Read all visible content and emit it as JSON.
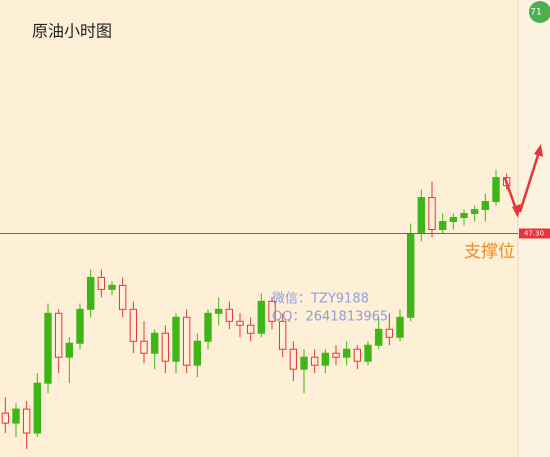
{
  "chart_data": {
    "type": "candlestick",
    "title": "原油小时图",
    "badge": "71",
    "price_line": {
      "value": 47.3,
      "label": "47.30"
    },
    "annotations": [
      "支撑位",
      "微信：TZY9188",
      "QQ：2641813965"
    ],
    "bull_color": "#3fb618",
    "bear_color": "#e8343c",
    "ylim": [
      46.18,
      48.47
    ],
    "open": [
      46.4,
      46.35,
      46.42,
      46.3,
      46.55,
      46.9,
      46.68,
      46.75,
      46.92,
      47.08,
      47.02,
      47.04,
      46.92,
      46.76,
      46.7,
      46.8,
      46.66,
      46.88,
      46.64,
      46.76,
      46.9,
      46.92,
      46.86,
      46.84,
      46.8,
      46.96,
      46.86,
      46.72,
      46.62,
      46.68,
      46.64,
      46.7,
      46.68,
      46.72,
      46.66,
      46.74,
      46.82,
      46.78,
      46.88,
      47.3,
      47.48,
      47.32,
      47.36,
      47.38,
      47.4,
      47.42,
      47.46,
      47.58
    ],
    "high": [
      46.48,
      46.45,
      46.46,
      46.6,
      46.95,
      46.92,
      46.78,
      46.95,
      47.12,
      47.12,
      47.06,
      47.08,
      46.96,
      46.86,
      46.82,
      46.84,
      46.9,
      46.92,
      46.8,
      46.92,
      46.98,
      46.96,
      46.9,
      46.88,
      47.0,
      46.98,
      46.9,
      46.76,
      46.72,
      46.72,
      46.72,
      46.74,
      46.76,
      46.74,
      46.76,
      46.88,
      46.9,
      46.92,
      47.35,
      47.52,
      47.56,
      47.4,
      47.4,
      47.42,
      47.44,
      47.5,
      47.62,
      47.6
    ],
    "low": [
      46.3,
      46.28,
      46.22,
      46.28,
      46.5,
      46.6,
      46.55,
      46.72,
      46.88,
      46.98,
      46.99,
      46.88,
      46.7,
      46.65,
      46.62,
      46.6,
      46.6,
      46.6,
      46.58,
      46.72,
      46.84,
      46.82,
      46.78,
      46.76,
      46.78,
      46.82,
      46.68,
      46.56,
      46.5,
      46.6,
      46.6,
      46.64,
      46.64,
      46.62,
      46.64,
      46.72,
      46.74,
      46.76,
      46.86,
      47.26,
      47.28,
      47.3,
      47.32,
      47.34,
      47.36,
      47.36,
      47.44,
      47.52
    ],
    "close": [
      46.35,
      46.42,
      46.3,
      46.55,
      46.9,
      46.68,
      46.75,
      46.92,
      47.08,
      47.02,
      47.04,
      46.92,
      46.76,
      46.7,
      46.8,
      46.66,
      46.88,
      46.64,
      46.76,
      46.9,
      46.92,
      46.86,
      46.84,
      46.8,
      46.96,
      46.86,
      46.72,
      46.62,
      46.68,
      46.64,
      46.7,
      46.68,
      46.72,
      46.66,
      46.74,
      46.82,
      46.78,
      46.88,
      47.3,
      47.48,
      47.32,
      47.36,
      47.38,
      47.4,
      47.42,
      47.46,
      47.58,
      47.54
    ]
  }
}
